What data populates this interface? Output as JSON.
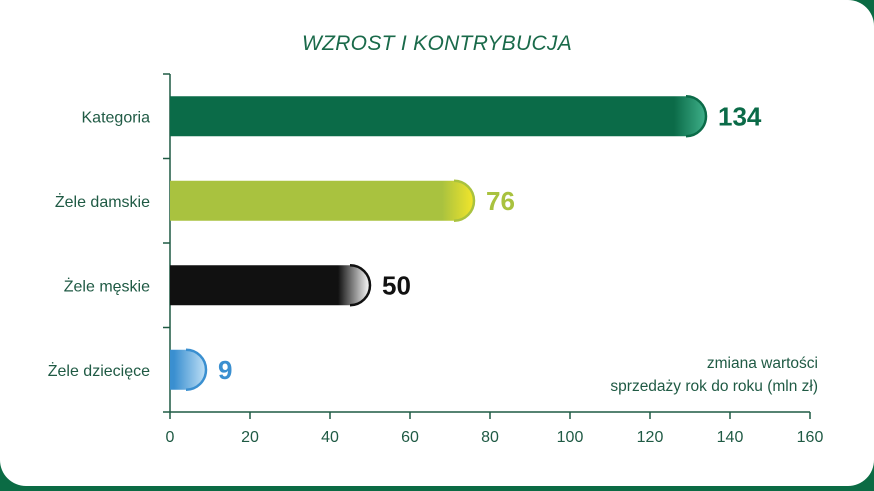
{
  "chart_data": {
    "type": "bar",
    "orientation": "horizontal",
    "title": "WZROST I KONTRYBUCJA",
    "categories": [
      "Kategoria",
      "Żele damskie",
      "Żele męskie",
      "Żele dziecięce"
    ],
    "values": [
      134,
      76,
      50,
      9
    ],
    "value_labels": [
      "134",
      "76",
      "50",
      "9"
    ],
    "bar_colors": [
      "#0b6b48",
      "#a9c23f",
      "#111111",
      "#3a8fd0"
    ],
    "label_colors": [
      "#0b6b48",
      "#a9c23f",
      "#111111",
      "#3a8fd0"
    ],
    "xlim": [
      0,
      160
    ],
    "xticks": [
      "0",
      "20",
      "40",
      "60",
      "80",
      "100",
      "120",
      "140",
      "160"
    ],
    "annotation": [
      "zmiana wartości",
      "sprzedaży rok do roku (mln zł)"
    ],
    "grid": false,
    "legend": "none"
  }
}
